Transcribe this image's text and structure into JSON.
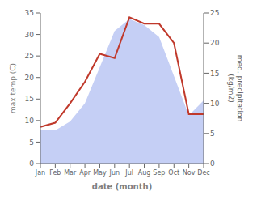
{
  "chart_data": {
    "type": "combo",
    "categories": [
      "Jan",
      "Feb",
      "Mar",
      "Apr",
      "May",
      "Jun",
      "Jul",
      "Aug",
      "Sep",
      "Oct",
      "Nov",
      "Dec"
    ],
    "series": [
      {
        "type": "area",
        "axis": "y2",
        "color": "#c5cff5",
        "values": [
          5.5,
          5.5,
          7.0,
          10.0,
          16.0,
          22.0,
          24.0,
          23.0,
          21.0,
          14.5,
          8.0,
          10.5
        ]
      },
      {
        "type": "line",
        "axis": "y",
        "color": "#c0392b",
        "values": [
          8.5,
          9.5,
          14.0,
          19.0,
          25.5,
          24.5,
          34.0,
          32.5,
          32.5,
          28.0,
          11.5,
          11.5
        ]
      }
    ],
    "ylim": [
      0,
      35
    ],
    "yticks": [
      0,
      5,
      10,
      15,
      20,
      25,
      30,
      35
    ],
    "y2lim": [
      0,
      25
    ],
    "y2ticks": [
      0,
      5,
      10,
      15,
      20,
      25
    ],
    "ylabel": "max temp (C)",
    "y2label": "med. precipitation\n(kg/m2)",
    "xlabel": "date (month)",
    "grid": false
  }
}
